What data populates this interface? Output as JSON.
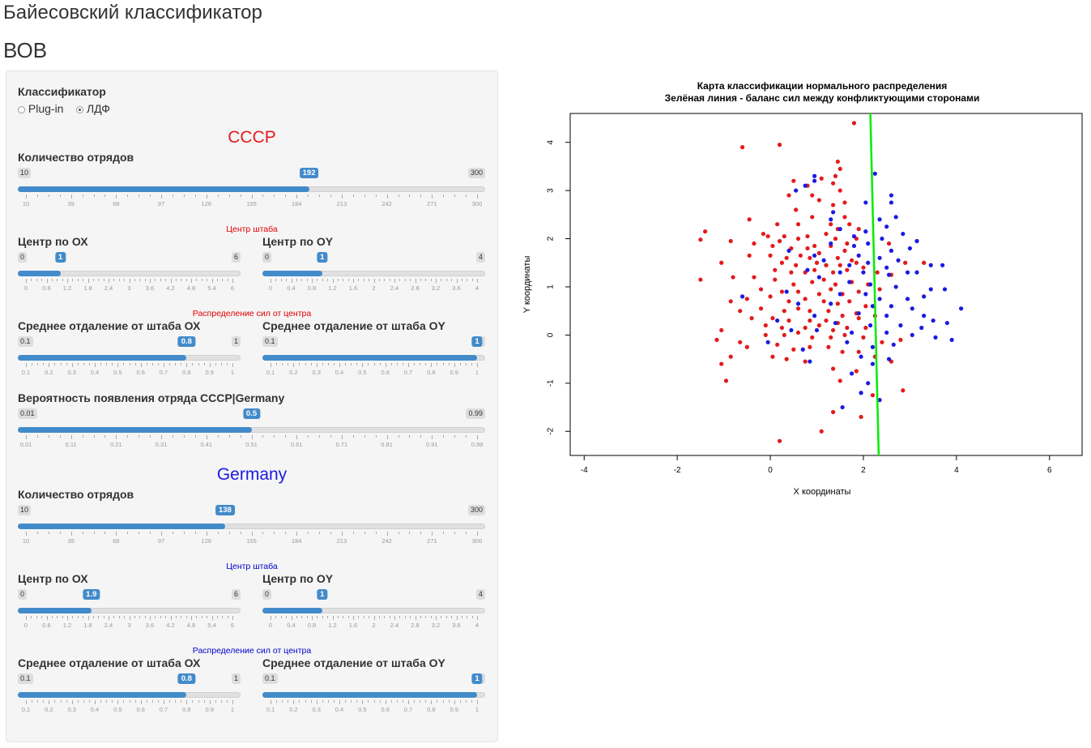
{
  "app": {
    "title": "Байесовский классификатор",
    "subtitle": "ВОВ"
  },
  "classifier": {
    "label": "Классификатор",
    "options": [
      "Plug-in",
      "ЛДФ"
    ],
    "selected": "ЛДФ"
  },
  "ussr": {
    "title": "СССР",
    "count": {
      "label": "Количество отрядов",
      "min": 10,
      "max": 300,
      "value": 192,
      "ticks": [
        "10",
        "39",
        "68",
        "97",
        "126",
        "155",
        "184",
        "213",
        "242",
        "271",
        "300"
      ]
    },
    "center_heading": "Центр штаба",
    "center_x": {
      "label": "Центр по ОХ",
      "min": 0,
      "max": 6,
      "value": 1,
      "ticks": [
        "0",
        "0.6",
        "1.2",
        "1.8",
        "2.4",
        "3",
        "3.6",
        "4.2",
        "4.8",
        "5.4",
        "6"
      ]
    },
    "center_y": {
      "label": "Центр по OY",
      "min": 0,
      "max": 4,
      "value": 1,
      "ticks": [
        "0",
        "0.4",
        "0.8",
        "1.2",
        "1.6",
        "2",
        "2.4",
        "2.8",
        "3.2",
        "3.6",
        "4"
      ]
    },
    "spread_heading": "Распределение сил от центра",
    "spread_x": {
      "label": "Среднее отдаление от штаба ОХ",
      "min": 0.1,
      "max": 1,
      "value": 0.8,
      "ticks": [
        "0.1",
        "0.2",
        "0.3",
        "0.4",
        "0.5",
        "0.6",
        "0.7",
        "0.8",
        "0.9",
        "1"
      ]
    },
    "spread_y": {
      "label": "Среднее отдаление от штаба OY",
      "min": 0.1,
      "max": 1,
      "value": 1,
      "ticks": [
        "0.1",
        "0.2",
        "0.3",
        "0.4",
        "0.5",
        "0.6",
        "0.7",
        "0.8",
        "0.9",
        "1"
      ]
    },
    "prob": {
      "label": "Вероятность появления отряда СССР|Germany",
      "min": 0.01,
      "max": 0.99,
      "value": 0.5,
      "ticks": [
        "0.01",
        "0.11",
        "0.21",
        "0.31",
        "0.41",
        "0.51",
        "0.61",
        "0.71",
        "0.81",
        "0.91",
        "0.99"
      ]
    }
  },
  "germany": {
    "title": "Germany",
    "count": {
      "label": "Количество отрядов",
      "min": 10,
      "max": 300,
      "value": 138,
      "ticks": [
        "10",
        "39",
        "68",
        "97",
        "126",
        "155",
        "184",
        "213",
        "242",
        "271",
        "300"
      ]
    },
    "center_heading": "Центр штаба",
    "center_x": {
      "label": "Центр по ОХ",
      "min": 0,
      "max": 6,
      "value": 1.9,
      "ticks": [
        "0",
        "0.6",
        "1.2",
        "1.8",
        "2.4",
        "3",
        "3.6",
        "4.2",
        "4.8",
        "5.4",
        "6"
      ]
    },
    "center_y": {
      "label": "Центр по OY",
      "min": 0,
      "max": 4,
      "value": 1,
      "ticks": [
        "0",
        "0.4",
        "0.8",
        "1.2",
        "1.6",
        "2",
        "2.4",
        "2.8",
        "3.2",
        "3.6",
        "4"
      ]
    },
    "spread_heading": "Распределение сил от центра",
    "spread_x": {
      "label": "Среднее отдаление от штаба ОХ",
      "min": 0.1,
      "max": 1,
      "value": 0.8,
      "ticks": [
        "0.1",
        "0.2",
        "0.3",
        "0.4",
        "0.5",
        "0.6",
        "0.7",
        "0.8",
        "0.9",
        "1"
      ]
    },
    "spread_y": {
      "label": "Среднее отдаление от штаба OY",
      "min": 0.1,
      "max": 1,
      "value": 1,
      "ticks": [
        "0.1",
        "0.2",
        "0.3",
        "0.4",
        "0.5",
        "0.6",
        "0.7",
        "0.8",
        "0.9",
        "1"
      ]
    }
  },
  "colors": {
    "ussr": "#e31a1c",
    "germany": "#1a1ae3",
    "slider": "#428bca",
    "line": "#00ee00"
  },
  "chart_data": {
    "type": "scatter",
    "title": "Карта классификации нормального распределения",
    "subtitle": "Зелёная линия - баланс сил между конфликтующими сторонами",
    "xlabel": "X координаты",
    "ylabel": "Y координаты",
    "xlim": [
      -4.3,
      6.7
    ],
    "ylim": [
      -2.5,
      4.6
    ],
    "xticks": [
      "-4",
      "-2",
      "0",
      "2",
      "4",
      "6"
    ],
    "yticks": [
      "-2",
      "-1",
      "0",
      "1",
      "2",
      "3",
      "4"
    ],
    "boundary_line": {
      "x1": 2.33,
      "y1": -2.5,
      "x2": 2.15,
      "y2": 4.6,
      "color": "#00ee00"
    },
    "series": [
      {
        "color": "#e31a1c",
        "points": [
          [
            1.8,
            4.4
          ],
          [
            -0.6,
            3.9
          ],
          [
            0.2,
            3.95
          ],
          [
            1.45,
            3.6
          ],
          [
            1.5,
            3.45
          ],
          [
            1.4,
            3.3
          ],
          [
            1.1,
            3.25
          ],
          [
            0.5,
            3.2
          ],
          [
            0.8,
            3.1
          ],
          [
            1.35,
            3.15
          ],
          [
            1.5,
            3.0
          ],
          [
            0.9,
            2.9
          ],
          [
            0.4,
            2.9
          ],
          [
            1.05,
            2.8
          ],
          [
            1.6,
            2.75
          ],
          [
            0.55,
            2.6
          ],
          [
            1.35,
            2.7
          ],
          [
            0.9,
            2.45
          ],
          [
            1.3,
            2.3
          ],
          [
            -1.4,
            2.15
          ],
          [
            -0.45,
            2.4
          ],
          [
            1.6,
            2.45
          ],
          [
            1.7,
            2.3
          ],
          [
            0.6,
            2.3
          ],
          [
            0.15,
            2.3
          ],
          [
            -0.15,
            2.1
          ],
          [
            -0.05,
            2.05
          ],
          [
            0.3,
            2.05
          ],
          [
            0.6,
            2.0
          ],
          [
            0.8,
            2.05
          ],
          [
            1.2,
            2.1
          ],
          [
            1.4,
            2.0
          ],
          [
            1.45,
            2.2
          ],
          [
            1.85,
            2.0
          ],
          [
            1.9,
            2.2
          ],
          [
            -1.5,
            1.98
          ],
          [
            -0.85,
            1.95
          ],
          [
            -0.35,
            1.9
          ],
          [
            0.05,
            1.85
          ],
          [
            0.2,
            1.95
          ],
          [
            0.45,
            1.8
          ],
          [
            0.8,
            1.8
          ],
          [
            0.95,
            1.85
          ],
          [
            1.3,
            1.85
          ],
          [
            1.6,
            1.75
          ],
          [
            1.65,
            1.9
          ],
          [
            2.55,
            1.9
          ],
          [
            0.0,
            1.65
          ],
          [
            0.35,
            1.6
          ],
          [
            0.65,
            1.65
          ],
          [
            0.85,
            1.6
          ],
          [
            1.05,
            1.7
          ],
          [
            1.45,
            1.6
          ],
          [
            1.75,
            1.55
          ],
          [
            -1.05,
            1.5
          ],
          [
            0.25,
            1.5
          ],
          [
            0.55,
            1.45
          ],
          [
            1.0,
            1.5
          ],
          [
            1.2,
            1.45
          ],
          [
            1.5,
            1.45
          ],
          [
            1.85,
            1.5
          ],
          [
            2.0,
            1.4
          ],
          [
            2.9,
            1.5
          ],
          [
            -0.45,
            1.65
          ],
          [
            0.1,
            1.35
          ],
          [
            0.45,
            1.3
          ],
          [
            0.75,
            1.3
          ],
          [
            0.95,
            1.35
          ],
          [
            1.35,
            1.3
          ],
          [
            1.65,
            1.35
          ],
          [
            2.3,
            1.3
          ],
          [
            3.3,
            1.5
          ],
          [
            -1.5,
            1.15
          ],
          [
            -0.8,
            1.2
          ],
          [
            -0.35,
            1.2
          ],
          [
            0.1,
            1.15
          ],
          [
            0.5,
            1.05
          ],
          [
            0.9,
            1.1
          ],
          [
            1.15,
            1.15
          ],
          [
            1.4,
            1.05
          ],
          [
            1.75,
            1.1
          ],
          [
            2.1,
            1.05
          ],
          [
            2.6,
            1.25
          ],
          [
            -0.2,
            0.95
          ],
          [
            0.25,
            0.9
          ],
          [
            0.6,
            0.9
          ],
          [
            1.05,
            0.85
          ],
          [
            1.3,
            0.95
          ],
          [
            1.55,
            0.85
          ],
          [
            1.9,
            0.9
          ],
          [
            2.35,
            0.95
          ],
          [
            -0.85,
            0.7
          ],
          [
            -0.5,
            0.75
          ],
          [
            0.0,
            0.8
          ],
          [
            0.4,
            0.7
          ],
          [
            0.75,
            0.75
          ],
          [
            1.15,
            0.7
          ],
          [
            1.45,
            0.65
          ],
          [
            1.7,
            0.7
          ],
          [
            2.05,
            0.6
          ],
          [
            -0.65,
            0.5
          ],
          [
            -0.2,
            0.55
          ],
          [
            0.3,
            0.5
          ],
          [
            0.6,
            0.55
          ],
          [
            0.85,
            0.5
          ],
          [
            1.25,
            0.5
          ],
          [
            1.55,
            0.4
          ],
          [
            1.85,
            0.45
          ],
          [
            2.25,
            0.4
          ],
          [
            -0.4,
            0.35
          ],
          [
            0.05,
            0.35
          ],
          [
            0.4,
            0.3
          ],
          [
            0.85,
            0.3
          ],
          [
            1.2,
            0.3
          ],
          [
            1.45,
            0.25
          ],
          [
            1.9,
            0.35
          ],
          [
            -1.05,
            0.1
          ],
          [
            -0.1,
            0.2
          ],
          [
            0.25,
            0.15
          ],
          [
            0.75,
            0.15
          ],
          [
            1.05,
            0.2
          ],
          [
            1.35,
            0.1
          ],
          [
            1.65,
            0.15
          ],
          [
            2.05,
            0.15
          ],
          [
            -1.15,
            -0.1
          ],
          [
            -0.65,
            -0.15
          ],
          [
            -0.1,
            0.0
          ],
          [
            0.3,
            0.0
          ],
          [
            0.6,
            0.05
          ],
          [
            0.9,
            -0.05
          ],
          [
            1.3,
            -0.05
          ],
          [
            1.6,
            0.0
          ],
          [
            2.0,
            -0.05
          ],
          [
            2.4,
            -0.15
          ],
          [
            2.8,
            -0.1
          ],
          [
            -0.85,
            -0.45
          ],
          [
            -0.5,
            -0.25
          ],
          [
            0.15,
            -0.2
          ],
          [
            0.5,
            -0.3
          ],
          [
            0.85,
            -0.25
          ],
          [
            1.25,
            -0.25
          ],
          [
            1.55,
            -0.35
          ],
          [
            1.9,
            -0.35
          ],
          [
            -1.05,
            -0.6
          ],
          [
            0.05,
            -0.45
          ],
          [
            0.35,
            -0.5
          ],
          [
            0.75,
            -0.55
          ],
          [
            1.35,
            -0.7
          ],
          [
            2.25,
            -0.45
          ],
          [
            2.6,
            -0.55
          ],
          [
            -0.95,
            -0.95
          ],
          [
            1.5,
            -0.95
          ],
          [
            1.85,
            -0.75
          ],
          [
            2.85,
            -1.15
          ],
          [
            2.2,
            -1.25
          ],
          [
            1.35,
            -1.6
          ],
          [
            1.95,
            -1.7
          ],
          [
            1.1,
            -2.0
          ],
          [
            0.2,
            -2.2
          ]
        ]
      },
      {
        "color": "#1a1ae3",
        "points": [
          [
            2.25,
            3.35
          ],
          [
            0.95,
            3.3
          ],
          [
            0.75,
            3.1
          ],
          [
            0.55,
            3.0
          ],
          [
            2.6,
            2.9
          ],
          [
            0.95,
            3.2
          ],
          [
            2.05,
            2.75
          ],
          [
            2.6,
            2.75
          ],
          [
            1.35,
            2.55
          ],
          [
            2.35,
            2.4
          ],
          [
            2.7,
            2.45
          ],
          [
            1.3,
            2.4
          ],
          [
            1.5,
            2.2
          ],
          [
            2.5,
            2.25
          ],
          [
            1.8,
            2.05
          ],
          [
            2.05,
            2.15
          ],
          [
            2.4,
            2.0
          ],
          [
            2.85,
            2.1
          ],
          [
            3.15,
            1.95
          ],
          [
            1.3,
            1.9
          ],
          [
            1.8,
            1.85
          ],
          [
            2.1,
            1.9
          ],
          [
            2.6,
            1.75
          ],
          [
            3.0,
            1.8
          ],
          [
            0.4,
            1.75
          ],
          [
            0.95,
            1.65
          ],
          [
            1.9,
            1.65
          ],
          [
            2.35,
            1.6
          ],
          [
            2.75,
            1.55
          ],
          [
            3.45,
            1.45
          ],
          [
            1.15,
            1.55
          ],
          [
            1.7,
            1.45
          ],
          [
            2.1,
            1.5
          ],
          [
            2.5,
            1.4
          ],
          [
            2.95,
            1.3
          ],
          [
            3.7,
            1.45
          ],
          [
            0.8,
            1.35
          ],
          [
            1.5,
            1.3
          ],
          [
            2.0,
            1.3
          ],
          [
            2.55,
            1.25
          ],
          [
            3.15,
            1.3
          ],
          [
            1.05,
            1.2
          ],
          [
            1.7,
            1.1
          ],
          [
            2.15,
            1.05
          ],
          [
            2.7,
            1.0
          ],
          [
            3.45,
            0.95
          ],
          [
            3.75,
            0.95
          ],
          [
            0.35,
            0.9
          ],
          [
            1.5,
            0.85
          ],
          [
            2.05,
            0.85
          ],
          [
            2.35,
            0.75
          ],
          [
            2.95,
            0.75
          ],
          [
            3.3,
            0.8
          ],
          [
            -0.6,
            0.8
          ],
          [
            0.6,
            0.65
          ],
          [
            1.3,
            0.65
          ],
          [
            2.2,
            0.6
          ],
          [
            2.6,
            0.6
          ],
          [
            3.05,
            0.55
          ],
          [
            4.1,
            0.55
          ],
          [
            0.95,
            0.4
          ],
          [
            1.9,
            0.45
          ],
          [
            2.5,
            0.4
          ],
          [
            3.3,
            0.4
          ],
          [
            3.5,
            0.3
          ],
          [
            3.8,
            0.25
          ],
          [
            0.15,
            0.3
          ],
          [
            1.4,
            0.25
          ],
          [
            2.15,
            0.2
          ],
          [
            2.8,
            0.2
          ],
          [
            3.25,
            0.15
          ],
          [
            0.45,
            0.1
          ],
          [
            1.0,
            0.1
          ],
          [
            1.75,
            0.05
          ],
          [
            2.5,
            0.05
          ],
          [
            3.05,
            0.0
          ],
          [
            3.55,
            -0.05
          ],
          [
            3.9,
            -0.1
          ],
          [
            -0.05,
            -0.15
          ],
          [
            1.65,
            -0.15
          ],
          [
            2.2,
            -0.25
          ],
          [
            2.65,
            -0.2
          ],
          [
            0.7,
            -0.3
          ],
          [
            1.95,
            -0.45
          ],
          [
            2.55,
            -0.5
          ],
          [
            2.2,
            -0.6
          ],
          [
            1.75,
            -0.8
          ],
          [
            0.85,
            -0.55
          ],
          [
            2.35,
            -1.35
          ],
          [
            1.55,
            -1.5
          ],
          [
            1.95,
            -1.2
          ],
          [
            2.1,
            -1.0
          ]
        ]
      }
    ]
  }
}
